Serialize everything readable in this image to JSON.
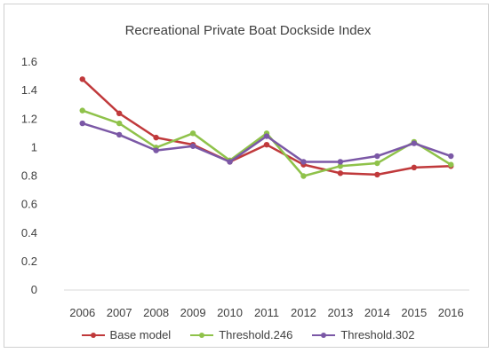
{
  "chart_data": {
    "type": "line",
    "title": "Recreational Private Boat Dockside Index",
    "xlabel": "",
    "ylabel": "",
    "categories": [
      "2006",
      "2007",
      "2008",
      "2009",
      "2010",
      "2011",
      "2012",
      "2013",
      "2014",
      "2015",
      "2016"
    ],
    "ylim": [
      0,
      1.6
    ],
    "yticks": [
      "0",
      "0.2",
      "0.4",
      "0.6",
      "0.8",
      "1",
      "1.2",
      "1.4",
      "1.6"
    ],
    "grid": false,
    "legend_position": "bottom",
    "series": [
      {
        "name": "Base model",
        "color": "#c0393b",
        "values": [
          1.48,
          1.24,
          1.07,
          1.02,
          0.9,
          1.02,
          0.88,
          0.82,
          0.81,
          0.86,
          0.87
        ]
      },
      {
        "name": "Threshold.246",
        "color": "#8fc24a",
        "values": [
          1.26,
          1.17,
          1.0,
          1.1,
          0.91,
          1.1,
          0.8,
          0.87,
          0.89,
          1.04,
          0.88
        ]
      },
      {
        "name": "Threshold.302",
        "color": "#7b58a6",
        "values": [
          1.17,
          1.09,
          0.98,
          1.01,
          0.9,
          1.08,
          0.9,
          0.9,
          0.94,
          1.03,
          0.94
        ]
      }
    ]
  }
}
